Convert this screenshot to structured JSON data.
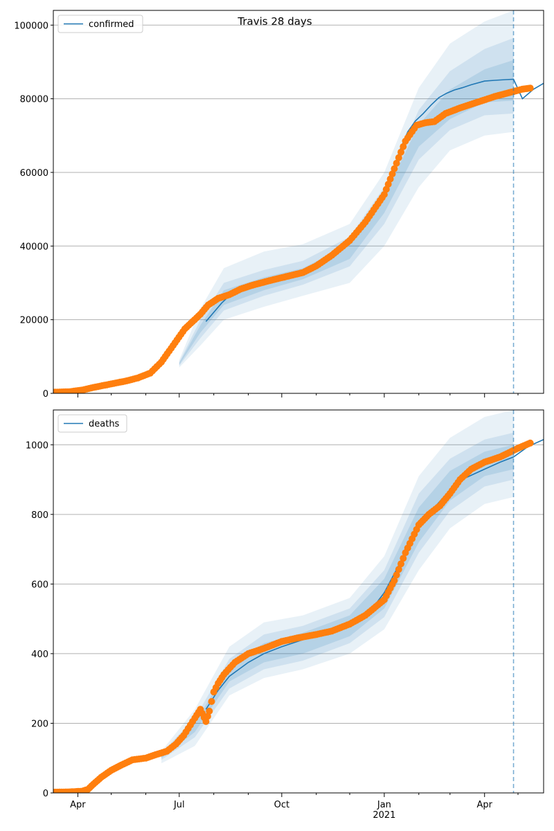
{
  "title": "Travis 28 days",
  "colors": {
    "model": "#1f77b4",
    "observed": "#ff7f0e",
    "band": "#1f77b4",
    "grid": "#b0b0b0",
    "forecast_line": "#1f77b4"
  },
  "chart_data": [
    {
      "type": "line",
      "panel": "top",
      "legend": {
        "label": "confirmed",
        "position": "upper-left"
      },
      "title": "Travis 28 days",
      "xlabel": "",
      "ylabel": "",
      "x_type": "date",
      "xlim": [
        "2020-03-10",
        "2021-05-24"
      ],
      "ylim": [
        0,
        104000
      ],
      "y_ticks": [
        0,
        20000,
        40000,
        60000,
        80000,
        100000
      ],
      "y_tick_labels": [
        "0",
        "20000",
        "40000",
        "60000",
        "80000",
        "100000"
      ],
      "grid": "y",
      "forecast_start": "2021-04-27",
      "model": {
        "name": "confirmed",
        "x": [
          "2020-07-25",
          "2020-08-01",
          "2020-08-08",
          "2020-08-15",
          "2020-08-25",
          "2020-09-05",
          "2020-09-15",
          "2020-09-25",
          "2020-10-05",
          "2020-10-20",
          "2020-11-01",
          "2020-11-10",
          "2020-11-20",
          "2020-12-01",
          "2020-12-10",
          "2020-12-20",
          "2021-01-01",
          "2021-01-08",
          "2021-01-15",
          "2021-01-22",
          "2021-01-29",
          "2021-02-05",
          "2021-02-12",
          "2021-02-19",
          "2021-02-26",
          "2021-03-05",
          "2021-03-12",
          "2021-03-20",
          "2021-04-01",
          "2021-04-10",
          "2021-04-20",
          "2021-04-27",
          "2021-05-05",
          "2021-05-15",
          "2021-05-24"
        ],
        "y": [
          19500,
          22000,
          24500,
          26500,
          28000,
          29300,
          30500,
          31500,
          32300,
          33300,
          34500,
          36200,
          38800,
          42000,
          45000,
          49000,
          54500,
          60000,
          66000,
          71000,
          74000,
          76000,
          78300,
          80300,
          81500,
          82400,
          83000,
          83800,
          84800,
          85000,
          85200,
          85300,
          80000,
          82600,
          84200
        ]
      },
      "bands": [
        {
          "level": "outer",
          "x": [
            "2020-07-01",
            "2020-07-20",
            "2020-08-10",
            "2020-09-15",
            "2020-10-20",
            "2020-12-01",
            "2021-01-01",
            "2021-02-01",
            "2021-03-01",
            "2021-04-01",
            "2021-04-27"
          ],
          "upper": [
            9000,
            23000,
            34000,
            38500,
            40500,
            46000,
            60000,
            83000,
            95000,
            101000,
            104000
          ],
          "lower": [
            7000,
            13000,
            20000,
            23500,
            26500,
            30000,
            40000,
            56000,
            66000,
            70000,
            71000
          ]
        },
        {
          "level": "middle",
          "x": [
            "2020-07-01",
            "2020-07-20",
            "2020-08-10",
            "2020-09-15",
            "2020-10-20",
            "2020-12-01",
            "2021-01-01",
            "2021-02-01",
            "2021-03-01",
            "2021-04-01",
            "2021-04-27"
          ],
          "upper": [
            8500,
            20000,
            30000,
            33500,
            36000,
            42500,
            56000,
            77000,
            87500,
            93500,
            96500
          ],
          "lower": [
            7500,
            15000,
            22500,
            26500,
            29500,
            34500,
            46000,
            63500,
            71500,
            75500,
            76000
          ]
        },
        {
          "level": "inner",
          "x": [
            "2020-07-01",
            "2020-07-20",
            "2020-08-10",
            "2020-09-15",
            "2020-10-20",
            "2020-12-01",
            "2021-01-01",
            "2021-02-01",
            "2021-03-01",
            "2021-04-01",
            "2021-04-27"
          ],
          "upper": [
            8200,
            18500,
            28000,
            31500,
            34000,
            40500,
            53500,
            73000,
            82500,
            88000,
            90500
          ],
          "lower": [
            7800,
            16500,
            24000,
            28000,
            31000,
            36500,
            49000,
            67000,
            74500,
            79000,
            79500
          ]
        }
      ],
      "observed": {
        "name": "observed confirmed",
        "x": [
          "2020-03-10",
          "2020-03-25",
          "2020-04-05",
          "2020-04-15",
          "2020-04-25",
          "2020-05-05",
          "2020-05-15",
          "2020-05-25",
          "2020-06-05",
          "2020-06-15",
          "2020-06-22",
          "2020-06-29",
          "2020-07-06",
          "2020-07-13",
          "2020-07-20",
          "2020-07-27",
          "2020-08-05",
          "2020-08-15",
          "2020-08-25",
          "2020-09-05",
          "2020-09-20",
          "2020-10-05",
          "2020-10-20",
          "2020-11-01",
          "2020-11-15",
          "2020-12-01",
          "2020-12-15",
          "2021-01-01",
          "2021-01-10",
          "2021-01-20",
          "2021-01-30",
          "2021-02-07",
          "2021-02-15",
          "2021-02-25",
          "2021-03-10",
          "2021-03-25",
          "2021-04-10",
          "2021-04-25",
          "2021-05-05",
          "2021-05-12"
        ],
        "y": [
          300,
          450,
          900,
          1600,
          2200,
          2800,
          3400,
          4200,
          5500,
          8500,
          11500,
          14500,
          17500,
          19500,
          21500,
          24000,
          25800,
          26800,
          28300,
          29400,
          30600,
          31700,
          32800,
          34600,
          37500,
          41500,
          46500,
          54000,
          61000,
          68500,
          72800,
          73500,
          73800,
          76000,
          77500,
          79000,
          80600,
          81800,
          82600,
          82900
        ]
      }
    },
    {
      "type": "line",
      "panel": "bottom",
      "legend": {
        "label": "deaths",
        "position": "upper-left"
      },
      "title": "",
      "xlabel": "",
      "ylabel": "",
      "x_type": "date",
      "xlim": [
        "2020-03-10",
        "2021-05-24"
      ],
      "ylim": [
        0,
        1100
      ],
      "y_ticks": [
        0,
        200,
        400,
        600,
        800,
        1000
      ],
      "y_tick_labels": [
        "0",
        "200",
        "400",
        "600",
        "800",
        "1000"
      ],
      "x_tick_labels": [
        {
          "date": "2020-04-01",
          "label": "Apr"
        },
        {
          "date": "2020-07-01",
          "label": "Jul"
        },
        {
          "date": "2020-10-01",
          "label": "Oct"
        },
        {
          "date": "2021-01-01",
          "label": "Jan\n2021"
        },
        {
          "date": "2021-04-01",
          "label": "Apr"
        }
      ],
      "grid": "y",
      "forecast_start": "2021-04-27",
      "model": {
        "name": "deaths",
        "x": [
          "2020-07-25",
          "2020-08-05",
          "2020-08-15",
          "2020-09-01",
          "2020-09-15",
          "2020-10-01",
          "2020-10-20",
          "2020-11-10",
          "2020-12-01",
          "2020-12-20",
          "2021-01-01",
          "2021-01-15",
          "2021-02-01",
          "2021-02-15",
          "2021-03-01",
          "2021-03-15",
          "2021-04-01",
          "2021-04-15",
          "2021-04-27",
          "2021-05-10",
          "2021-05-24"
        ],
        "y": [
          240,
          295,
          335,
          375,
          400,
          420,
          440,
          460,
          490,
          525,
          575,
          660,
          765,
          820,
          870,
          905,
          930,
          950,
          965,
          995,
          1015
        ]
      },
      "bands": [
        {
          "level": "outer",
          "x": [
            "2020-06-15",
            "2020-07-15",
            "2020-08-15",
            "2020-09-15",
            "2020-10-20",
            "2020-12-01",
            "2021-01-01",
            "2021-02-01",
            "2021-03-01",
            "2021-04-01",
            "2021-04-27"
          ],
          "upper": [
            120,
            240,
            420,
            490,
            510,
            560,
            680,
            910,
            1020,
            1080,
            1100
          ],
          "lower": [
            85,
            135,
            280,
            330,
            355,
            400,
            470,
            640,
            760,
            830,
            850
          ]
        },
        {
          "level": "middle",
          "x": [
            "2020-06-15",
            "2020-07-15",
            "2020-08-15",
            "2020-09-15",
            "2020-10-20",
            "2020-12-01",
            "2021-01-01",
            "2021-02-01",
            "2021-03-01",
            "2021-04-01",
            "2021-04-27"
          ],
          "upper": [
            115,
            215,
            385,
            455,
            480,
            530,
            640,
            860,
            960,
            1015,
            1035
          ],
          "lower": [
            95,
            160,
            300,
            355,
            380,
            430,
            505,
            690,
            810,
            880,
            900
          ]
        },
        {
          "level": "inner",
          "x": [
            "2020-06-15",
            "2020-07-15",
            "2020-08-15",
            "2020-09-15",
            "2020-10-20",
            "2020-12-01",
            "2021-01-01",
            "2021-02-01",
            "2021-03-01",
            "2021-04-01",
            "2021-04-27"
          ],
          "upper": [
            112,
            200,
            365,
            430,
            460,
            510,
            615,
            820,
            925,
            980,
            1000
          ],
          "lower": [
            100,
            175,
            320,
            375,
            400,
            450,
            530,
            720,
            840,
            910,
            930
          ]
        }
      ],
      "observed": {
        "name": "observed deaths",
        "x": [
          "2020-03-10",
          "2020-03-25",
          "2020-04-05",
          "2020-04-10",
          "2020-04-15",
          "2020-04-22",
          "2020-05-01",
          "2020-05-10",
          "2020-05-20",
          "2020-06-01",
          "2020-06-10",
          "2020-06-20",
          "2020-06-28",
          "2020-07-05",
          "2020-07-15",
          "2020-07-20",
          "2020-07-25",
          "2020-07-28",
          "2020-08-01",
          "2020-08-05",
          "2020-08-10",
          "2020-08-20",
          "2020-09-01",
          "2020-09-15",
          "2020-10-01",
          "2020-10-15",
          "2020-11-01",
          "2020-11-15",
          "2020-12-01",
          "2020-12-15",
          "2021-01-01",
          "2021-01-10",
          "2021-01-20",
          "2021-02-01",
          "2021-02-10",
          "2021-02-20",
          "2021-03-01",
          "2021-03-10",
          "2021-03-20",
          "2021-04-01",
          "2021-04-15",
          "2021-05-01",
          "2021-05-12"
        ],
        "y": [
          2,
          3,
          5,
          10,
          25,
          45,
          65,
          80,
          95,
          100,
          110,
          120,
          140,
          165,
          215,
          240,
          205,
          235,
          290,
          315,
          340,
          375,
          400,
          415,
          435,
          445,
          455,
          465,
          485,
          510,
          555,
          610,
          690,
          770,
          800,
          825,
          860,
          900,
          930,
          950,
          965,
          990,
          1005
        ]
      }
    }
  ]
}
